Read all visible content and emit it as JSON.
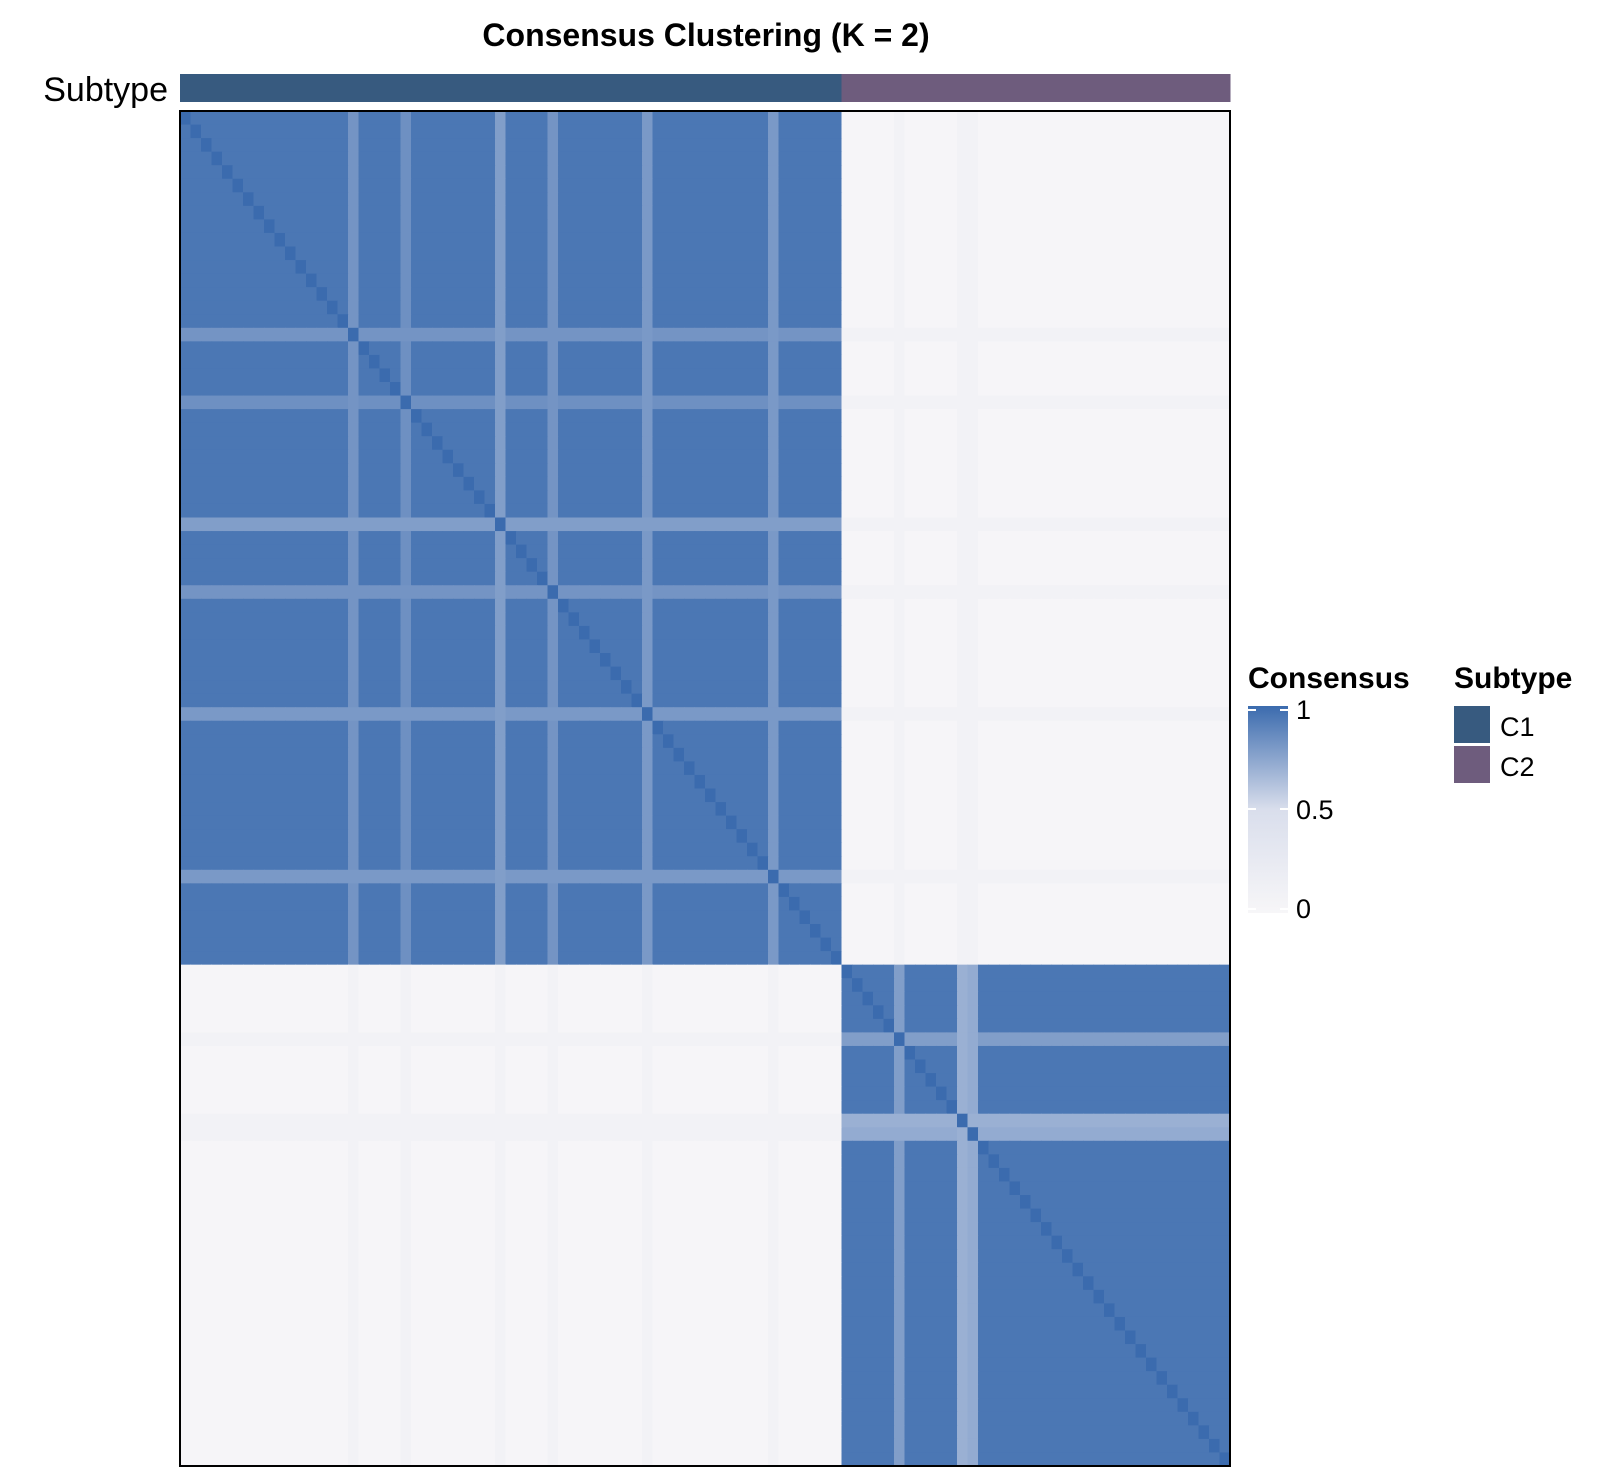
{
  "chart_data": {
    "type": "heatmap",
    "title": "Consensus Clustering (K = 2)",
    "annotation_label": "Subtype",
    "n_samples": 100,
    "clusters": [
      {
        "name": "C1",
        "size": 63,
        "color": "#375A7F"
      },
      {
        "name": "C2",
        "size": 37,
        "color": "#6E5C7D"
      }
    ],
    "within_cluster_consensus": 0.95,
    "between_cluster_consensus": 0.02,
    "weak_samples": [
      {
        "index": 16,
        "min_consensus": 0.82
      },
      {
        "index": 21,
        "min_consensus": 0.84
      },
      {
        "index": 30,
        "min_consensus": 0.78
      },
      {
        "index": 35,
        "min_consensus": 0.82
      },
      {
        "index": 44,
        "min_consensus": 0.8
      },
      {
        "index": 56,
        "min_consensus": 0.8
      },
      {
        "index": 68,
        "min_consensus": 0.78
      },
      {
        "index": 74,
        "min_consensus": 0.7
      },
      {
        "index": 75,
        "min_consensus": 0.72
      }
    ],
    "color_scale": {
      "low": "#F7F6F8",
      "mid": "#D9DEEC",
      "high": "#3B6BAE",
      "range": [
        0,
        1
      ]
    },
    "legends": [
      {
        "title": "Consensus",
        "kind": "gradient",
        "ticks": [
          "1",
          "0.5",
          "0"
        ]
      },
      {
        "title": "Subtype",
        "kind": "categorical",
        "entries": [
          {
            "label": "C1",
            "color": "#375A7F"
          },
          {
            "label": "C2",
            "color": "#6E5C7D"
          }
        ]
      }
    ]
  }
}
